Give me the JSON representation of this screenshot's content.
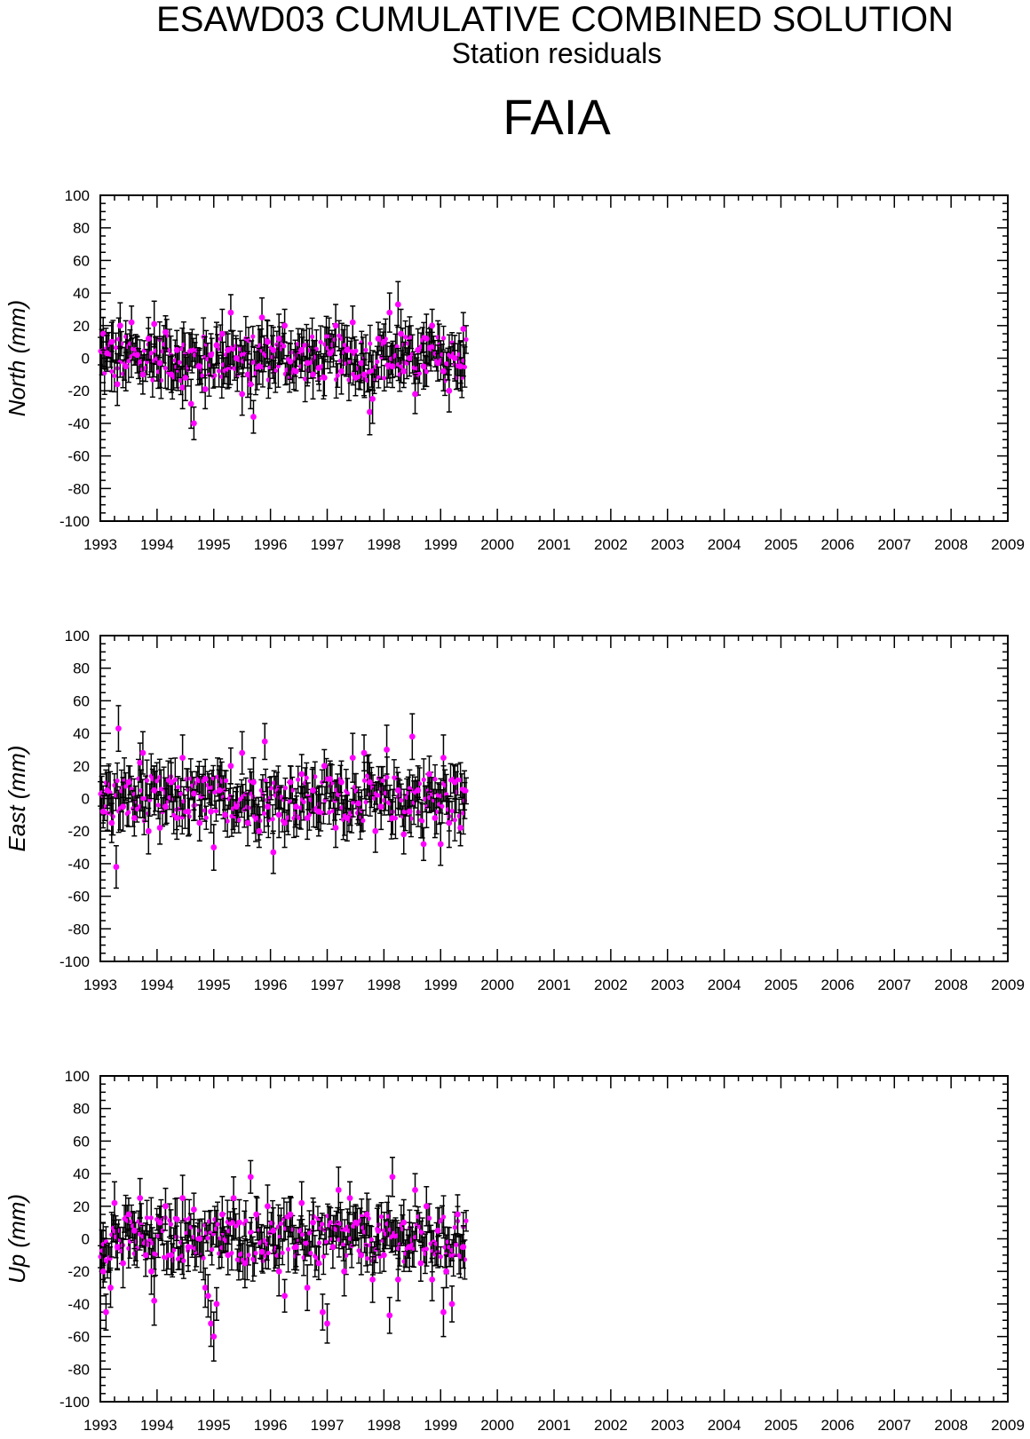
{
  "header": {
    "title": "ESAWD03 CUMULATIVE COMBINED SOLUTION",
    "subtitle": "Station residuals",
    "station": "FAIA"
  },
  "colors": {
    "point": "#ff00ff",
    "errorbar": "#000000",
    "axes": "#000000"
  },
  "chart_data": [
    {
      "type": "scatter",
      "ylabel": "North (mm)",
      "xlim": [
        1993,
        2009
      ],
      "ylim": [
        -100,
        100
      ],
      "x_ticks": [
        "1993",
        "1994",
        "1995",
        "1996",
        "1997",
        "1998",
        "1999",
        "2000",
        "2001",
        "2002",
        "2003",
        "2004",
        "2005",
        "2006",
        "2007",
        "2008",
        "2009"
      ],
      "y_ticks": [
        "100",
        "80",
        "60",
        "40",
        "20",
        "0",
        "-20",
        "-40",
        "-60",
        "-80",
        "-100"
      ],
      "error_bars": true,
      "data_range": [
        1993.0,
        1999.45
      ],
      "series": [
        {
          "x": [
            1993.05,
            1993.12,
            1993.2,
            1993.3,
            1993.35,
            1993.45,
            1993.55,
            1993.65,
            1993.75,
            1993.85,
            1993.95,
            1994.05,
            1994.15,
            1994.25,
            1994.35,
            1994.45,
            1994.5,
            1994.6,
            1994.65,
            1994.75,
            1994.85,
            1994.95,
            1995.05,
            1995.15,
            1995.25,
            1995.3,
            1995.4,
            1995.5,
            1995.6,
            1995.65,
            1995.7,
            1995.8,
            1995.85,
            1995.95,
            1996.05,
            1996.15,
            1996.25,
            1996.35,
            1996.45,
            1996.55,
            1996.65,
            1996.75,
            1996.85,
            1996.95,
            1997.05,
            1997.15,
            1997.25,
            1997.35,
            1997.45,
            1997.5,
            1997.6,
            1997.65,
            1997.75,
            1997.8,
            1997.9,
            1998.0,
            1998.1,
            1998.15,
            1998.25,
            1998.3,
            1998.35,
            1998.45,
            1998.55,
            1998.6,
            1998.7,
            1998.75,
            1998.85,
            1998.95,
            1999.05,
            1999.15,
            1999.25,
            1999.35,
            1999.4
          ],
          "y": [
            15,
            3,
            10,
            -16,
            20,
            -5,
            22,
            2,
            -10,
            12,
            21,
            -3,
            16,
            -10,
            5,
            -18,
            -12,
            -28,
            -40,
            -5,
            -19,
            2,
            8,
            15,
            5,
            28,
            0,
            -22,
            -10,
            -16,
            -36,
            -5,
            25,
            10,
            5,
            12,
            20,
            -2,
            -8,
            5,
            -3,
            -10,
            -6,
            -12,
            3,
            20,
            -8,
            5,
            22,
            -12,
            -3,
            -10,
            -33,
            -25,
            12,
            10,
            28,
            -5,
            33,
            15,
            -8,
            0,
            -22,
            5,
            -5,
            12,
            20,
            -3,
            -8,
            -20,
            0,
            -5,
            18
          ]
        }
      ]
    },
    {
      "type": "scatter",
      "ylabel": "East (mm)",
      "xlim": [
        1993,
        2009
      ],
      "ylim": [
        -100,
        100
      ],
      "x_ticks": [
        "1993",
        "1994",
        "1995",
        "1996",
        "1997",
        "1998",
        "1999",
        "2000",
        "2001",
        "2002",
        "2003",
        "2004",
        "2005",
        "2006",
        "2007",
        "2008",
        "2009"
      ],
      "y_ticks": [
        "100",
        "80",
        "60",
        "40",
        "20",
        "0",
        "-20",
        "-40",
        "-60",
        "-80",
        "-100"
      ],
      "error_bars": true,
      "data_range": [
        1993.0,
        1999.45
      ],
      "series": [
        {
          "x": [
            1993.05,
            1993.12,
            1993.2,
            1993.28,
            1993.32,
            1993.4,
            1993.5,
            1993.6,
            1993.7,
            1993.75,
            1993.85,
            1993.95,
            1994.05,
            1994.15,
            1994.25,
            1994.35,
            1994.45,
            1994.55,
            1994.65,
            1994.75,
            1994.85,
            1994.95,
            1995.0,
            1995.1,
            1995.2,
            1995.3,
            1995.4,
            1995.5,
            1995.6,
            1995.7,
            1995.8,
            1995.9,
            1995.95,
            1996.05,
            1996.15,
            1996.25,
            1996.35,
            1996.45,
            1996.55,
            1996.65,
            1996.75,
            1996.85,
            1996.95,
            1997.05,
            1997.15,
            1997.25,
            1997.35,
            1997.45,
            1997.55,
            1997.65,
            1997.75,
            1997.85,
            1997.95,
            1998.05,
            1998.15,
            1998.25,
            1998.35,
            1998.45,
            1998.5,
            1998.6,
            1998.7,
            1998.8,
            1998.9,
            1999.0,
            1999.05,
            1999.15,
            1999.25,
            1999.35,
            1999.42
          ],
          "y": [
            -8,
            5,
            -15,
            -42,
            43,
            -5,
            10,
            -12,
            22,
            28,
            -20,
            5,
            -18,
            -5,
            10,
            -12,
            25,
            -8,
            3,
            -15,
            12,
            -8,
            -30,
            5,
            -10,
            20,
            -5,
            28,
            -15,
            10,
            -20,
            35,
            -5,
            -33,
            -10,
            -15,
            10,
            -5,
            15,
            -12,
            5,
            -8,
            20,
            12,
            -18,
            10,
            -12,
            25,
            -3,
            28,
            10,
            -20,
            -5,
            30,
            -12,
            5,
            -22,
            -8,
            38,
            5,
            -28,
            15,
            -12,
            -28,
            25,
            -15,
            10,
            -18,
            5
          ]
        }
      ]
    },
    {
      "type": "scatter",
      "ylabel": "Up (mm)",
      "xlim": [
        1993,
        2009
      ],
      "ylim": [
        -100,
        100
      ],
      "x_ticks": [
        "1993",
        "1994",
        "1995",
        "1996",
        "1997",
        "1998",
        "1999",
        "2000",
        "2001",
        "2002",
        "2003",
        "2004",
        "2005",
        "2006",
        "2007",
        "2008",
        "2009"
      ],
      "y_ticks": [
        "100",
        "80",
        "60",
        "40",
        "20",
        "0",
        "-20",
        "-40",
        "-60",
        "-80",
        "-100"
      ],
      "error_bars": true,
      "data_range": [
        1993.0,
        1999.45
      ],
      "series": [
        {
          "x": [
            1993.05,
            1993.1,
            1993.18,
            1993.25,
            1993.3,
            1993.4,
            1993.5,
            1993.6,
            1993.7,
            1993.8,
            1993.9,
            1993.95,
            1994.05,
            1994.15,
            1994.25,
            1994.35,
            1994.45,
            1994.55,
            1994.65,
            1994.75,
            1994.85,
            1994.9,
            1994.95,
            1995.0,
            1995.05,
            1995.15,
            1995.25,
            1995.35,
            1995.45,
            1995.55,
            1995.65,
            1995.75,
            1995.85,
            1995.95,
            1996.05,
            1996.15,
            1996.25,
            1996.35,
            1996.45,
            1996.55,
            1996.65,
            1996.75,
            1996.85,
            1996.92,
            1997.0,
            1997.1,
            1997.2,
            1997.3,
            1997.4,
            1997.5,
            1997.6,
            1997.7,
            1997.8,
            1997.9,
            1998.0,
            1998.1,
            1998.15,
            1998.25,
            1998.35,
            1998.45,
            1998.55,
            1998.65,
            1998.75,
            1998.85,
            1998.95,
            1999.05,
            1999.1,
            1999.2,
            1999.3,
            1999.4
          ],
          "y": [
            -20,
            -45,
            -30,
            22,
            -5,
            -15,
            15,
            5,
            25,
            -10,
            -20,
            -38,
            10,
            20,
            -10,
            12,
            25,
            -5,
            18,
            0,
            -30,
            -35,
            -52,
            -60,
            -40,
            15,
            -10,
            25,
            10,
            -15,
            38,
            15,
            -8,
            20,
            5,
            -20,
            -35,
            15,
            -5,
            22,
            -30,
            10,
            -15,
            -45,
            -52,
            -5,
            30,
            -20,
            25,
            10,
            -10,
            15,
            -25,
            5,
            -10,
            -47,
            38,
            -25,
            10,
            -5,
            30,
            -15,
            20,
            -25,
            5,
            -45,
            -20,
            -40,
            15,
            -5
          ]
        }
      ]
    }
  ]
}
